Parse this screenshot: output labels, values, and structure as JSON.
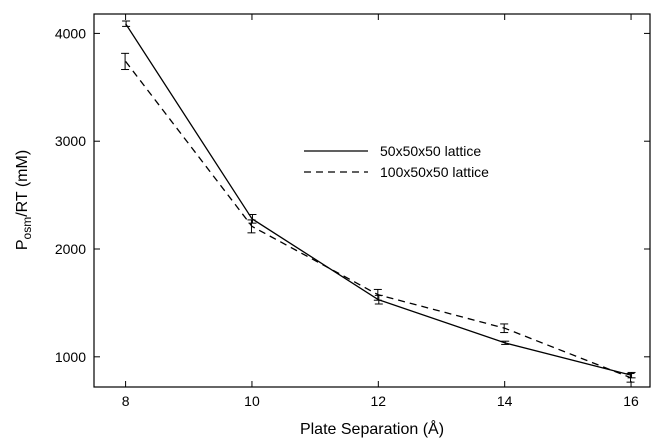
{
  "chart_data": {
    "type": "line",
    "xlabel": "Plate Separation (Å)",
    "ylabel_main": "P",
    "ylabel_sub": "osm",
    "ylabel_rest": "/RT (mM)",
    "xlim": [
      7.5,
      16.3
    ],
    "ylim": [
      720,
      4180
    ],
    "x_ticks": [
      8,
      10,
      12,
      14,
      16
    ],
    "y_ticks": [
      1000,
      2000,
      3000,
      4000
    ],
    "legend_position": "center-right",
    "grid": false,
    "series": [
      {
        "name": "50x50x50 lattice",
        "style": "solid",
        "color": "#000000",
        "x": [
          8,
          10,
          12,
          14,
          16
        ],
        "y": [
          4090,
          2280,
          1530,
          1130,
          830
        ],
        "err": [
          25,
          40,
          40,
          15,
          25
        ]
      },
      {
        "name": "100x50x50 lattice",
        "style": "dashed",
        "color": "#000000",
        "x": [
          8,
          10,
          12,
          14,
          16
        ],
        "y": [
          3740,
          2210,
          1575,
          1265,
          805
        ],
        "err": [
          75,
          60,
          50,
          40,
          40
        ]
      }
    ]
  }
}
